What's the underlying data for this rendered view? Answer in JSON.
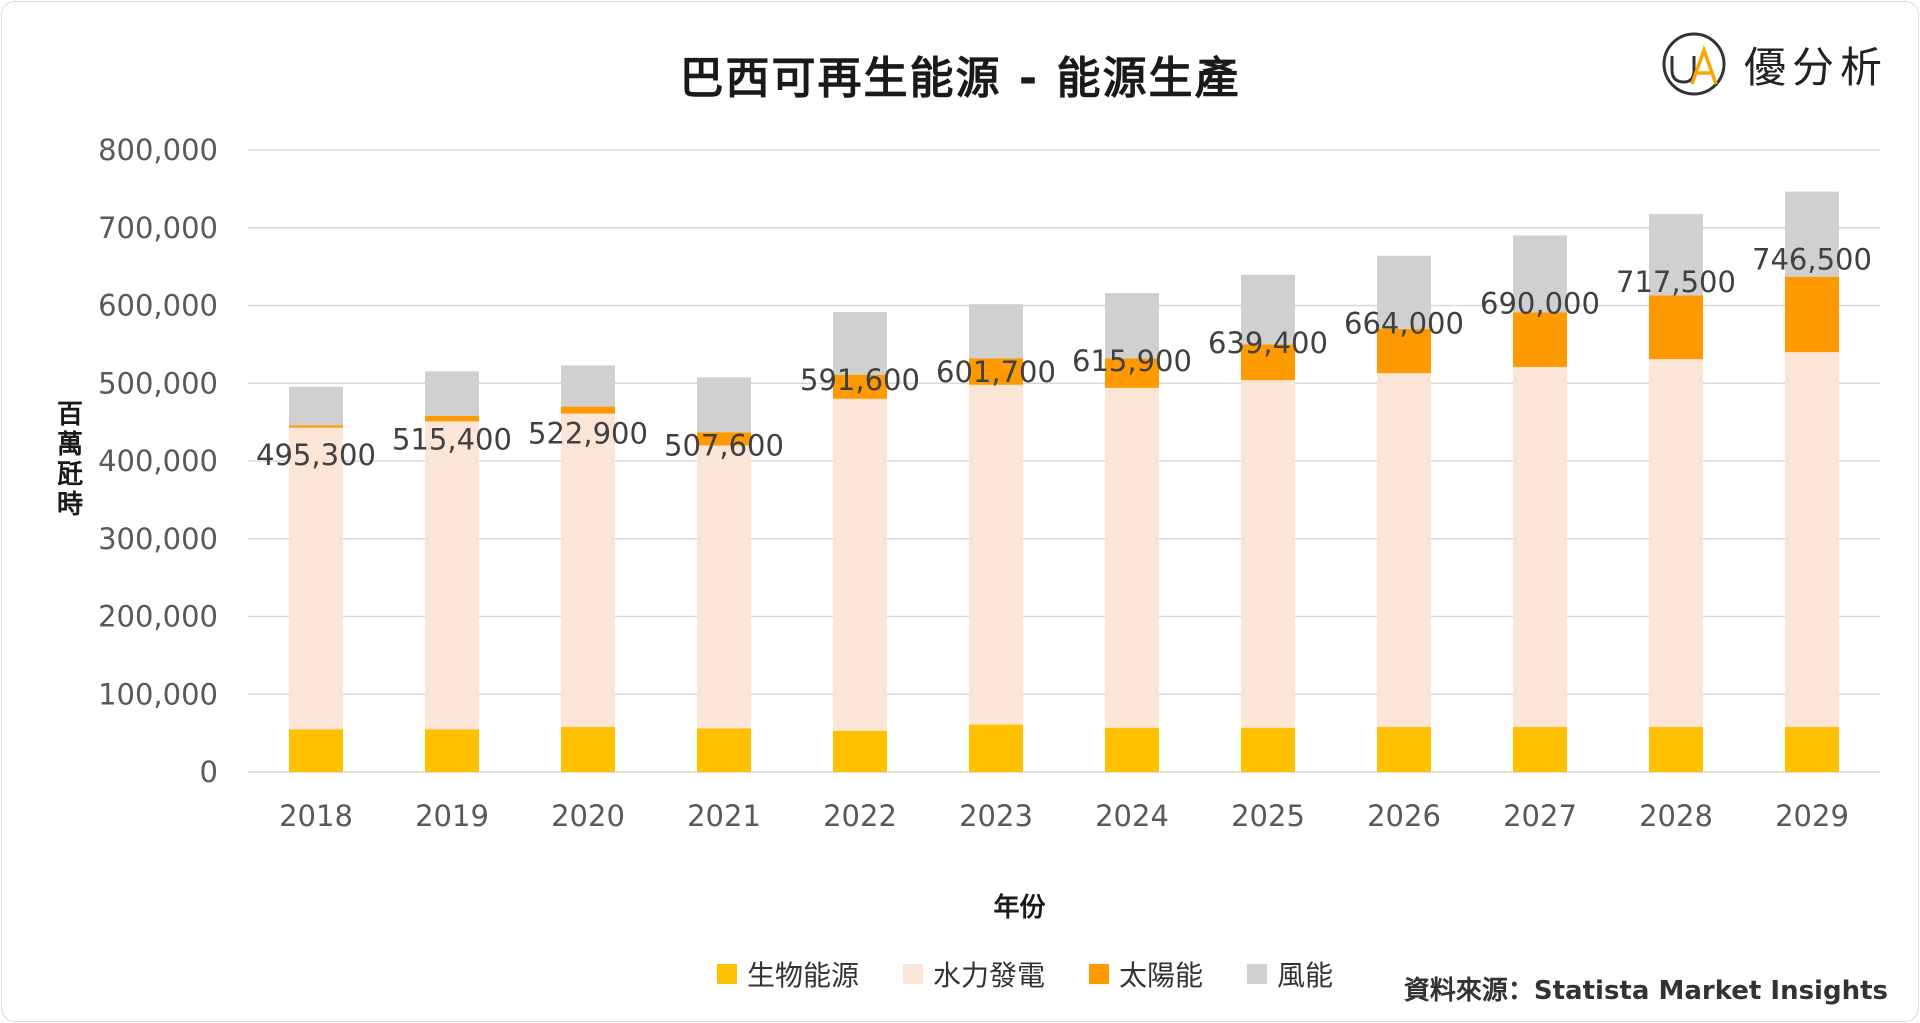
{
  "brand": {
    "name": "優分析",
    "logo_letters": "UA"
  },
  "source": "資料來源：Statista Market Insights",
  "colors": {
    "biomass": "#ffc000",
    "hydro": "#fbe5d6",
    "solar": "#ff9900",
    "wind": "#d0d0d0",
    "logo_ring": "#f5a800"
  },
  "chart_data": {
    "type": "bar",
    "stacked": true,
    "title": "巴西可再生能源 - 能源生產",
    "xlabel": "年份",
    "ylabel": "百萬瓩時",
    "ylim": [
      0,
      800000
    ],
    "yticks": [
      "0",
      "100,000",
      "200,000",
      "300,000",
      "400,000",
      "500,000",
      "600,000",
      "700,000",
      "800,000"
    ],
    "ytick_values": [
      0,
      100000,
      200000,
      300000,
      400000,
      500000,
      600000,
      700000,
      800000
    ],
    "grid": true,
    "legend_position": "bottom",
    "categories": [
      "2018",
      "2019",
      "2020",
      "2021",
      "2022",
      "2023",
      "2024",
      "2025",
      "2026",
      "2027",
      "2028",
      "2029"
    ],
    "series": [
      {
        "name": "生物能源",
        "color_key": "biomass",
        "values": [
          55000,
          55000,
          58000,
          56000,
          53000,
          61000,
          57000,
          57000,
          58000,
          58000,
          58000,
          58000
        ]
      },
      {
        "name": "水力發電",
        "color_key": "hydro",
        "values": [
          388000,
          396000,
          403000,
          364000,
          427000,
          437000,
          437000,
          447000,
          455000,
          463000,
          473000,
          482000
        ]
      },
      {
        "name": "太陽能",
        "color_key": "solar",
        "values": [
          3000,
          7000,
          9000,
          17000,
          31000,
          34000,
          38000,
          46000,
          57000,
          70000,
          82000,
          97000
        ]
      },
      {
        "name": "風能",
        "color_key": "wind",
        "values": [
          49300,
          57400,
          52900,
          70600,
          80600,
          69700,
          83900,
          89400,
          94000,
          99000,
          104500,
          109500
        ]
      }
    ],
    "totals": [
      495300,
      515400,
      522900,
      507600,
      591600,
      601700,
      615900,
      639400,
      664000,
      690000,
      717500,
      746500
    ],
    "total_labels": [
      "495,300",
      "515,400",
      "522,900",
      "507,600",
      "591,600",
      "601,700",
      "615,900",
      "639,400",
      "664,000",
      "690,000",
      "717,500",
      "746,500"
    ]
  }
}
